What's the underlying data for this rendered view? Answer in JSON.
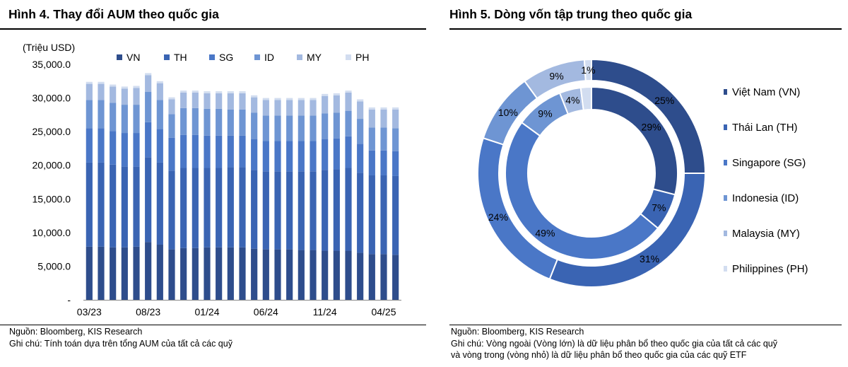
{
  "left": {
    "title": "Hình 4. Thay đổi AUM theo quốc gia",
    "source": "Nguồn: Bloomberg, KIS Research",
    "note": "Ghi chú: Tính toán dựa trên tổng AUM của tất cả các quỹ"
  },
  "right": {
    "title": "Hình 5. Dòng vốn tập trung theo quốc gia",
    "source": "Nguồn: Bloomberg, KIS Research",
    "note_line1": "Ghi chú: Vòng ngoài (Vòng lớn) là dữ liệu phân bổ theo quốc gia của tất cả các quỹ",
    "note_line2": "và vòng trong (vòng nhỏ) là dữ liệu phân bổ theo quốc gia của các quỹ ETF"
  },
  "colors": {
    "VN": "#2e4d8c",
    "TH": "#3a64b3",
    "SG": "#4a77c7",
    "ID": "#6e95d3",
    "MY": "#a3b9e0",
    "PH": "#d2ddf0"
  },
  "chart_data": [
    {
      "type": "bar",
      "stacked": true,
      "unit_label": "(Triệu USD)",
      "ylim": [
        0,
        35000
      ],
      "yticks": [
        0,
        5000,
        10000,
        15000,
        20000,
        25000,
        30000,
        35000
      ],
      "ytick_labels": [
        "-",
        "5,000.0",
        "10,000.0",
        "15,000.0",
        "20,000.0",
        "25,000.0",
        "30,000.0",
        "35,000.0"
      ],
      "xtick_labels": [
        {
          "index": 0,
          "label": "03/23"
        },
        {
          "index": 5,
          "label": "08/23"
        },
        {
          "index": 10,
          "label": "01/24"
        },
        {
          "index": 15,
          "label": "06/24"
        },
        {
          "index": 20,
          "label": "11/24"
        },
        {
          "index": 25,
          "label": "04/25"
        }
      ],
      "legend": [
        "VN",
        "TH",
        "SG",
        "ID",
        "MY",
        "PH"
      ],
      "legend_position": "top",
      "grid": false,
      "series": [
        {
          "name": "VN",
          "values": [
            7900,
            7900,
            7800,
            7800,
            7900,
            8600,
            8200,
            7500,
            7700,
            7700,
            7800,
            7800,
            7800,
            7800,
            7600,
            7500,
            7500,
            7500,
            7400,
            7400,
            7300,
            7300,
            7300,
            7000,
            6800,
            6800,
            6700
          ]
        },
        {
          "name": "TH",
          "values": [
            12500,
            12500,
            12300,
            12000,
            11900,
            12600,
            12200,
            11700,
            11900,
            11900,
            11800,
            11800,
            11900,
            11900,
            11700,
            11600,
            11600,
            11600,
            11700,
            11700,
            12000,
            12100,
            12300,
            11900,
            11700,
            11700,
            11700
          ]
        },
        {
          "name": "SG",
          "values": [
            5100,
            5100,
            5000,
            5000,
            5000,
            5200,
            5000,
            4900,
            4900,
            4900,
            4800,
            4800,
            4700,
            4700,
            4600,
            4500,
            4500,
            4500,
            4500,
            4500,
            4600,
            4600,
            4700,
            4300,
            3700,
            3700,
            3700
          ]
        },
        {
          "name": "ID",
          "values": [
            4200,
            4200,
            4200,
            4200,
            4200,
            4500,
            4300,
            3500,
            4000,
            4000,
            4000,
            4000,
            3900,
            3900,
            3900,
            3800,
            3800,
            3800,
            3800,
            3800,
            3800,
            3800,
            3800,
            3700,
            3400,
            3400,
            3400
          ]
        },
        {
          "name": "MY",
          "values": [
            2400,
            2400,
            2400,
            2400,
            2500,
            2500,
            2500,
            2200,
            2300,
            2300,
            2300,
            2300,
            2400,
            2400,
            2300,
            2300,
            2300,
            2300,
            2300,
            2300,
            2600,
            2600,
            2700,
            2600,
            2700,
            2700,
            2800
          ]
        },
        {
          "name": "PH",
          "values": [
            300,
            300,
            300,
            300,
            300,
            300,
            300,
            300,
            300,
            300,
            300,
            300,
            300,
            300,
            300,
            300,
            300,
            300,
            300,
            300,
            300,
            300,
            300,
            300,
            300,
            300,
            300
          ]
        }
      ]
    },
    {
      "type": "pie",
      "variant": "double-donut",
      "categories": [
        "Việt Nam (VN)",
        "Thái Lan (TH)",
        "Singapore (SG)",
        "Indonesia (ID)",
        "Malaysia (MY)",
        "Philippines (PH)"
      ],
      "series": [
        {
          "ring": "outer",
          "values": [
            25,
            31,
            24,
            10,
            9,
            1
          ],
          "labels": [
            "25%",
            "31%",
            "24%",
            "10%",
            "9%",
            "1%"
          ]
        },
        {
          "ring": "inner",
          "values": [
            29,
            7,
            49,
            9,
            4,
            2
          ],
          "labels": [
            "29%",
            "7%",
            "49%",
            "9%",
            "4%",
            ""
          ]
        }
      ],
      "legend_position": "right"
    }
  ]
}
